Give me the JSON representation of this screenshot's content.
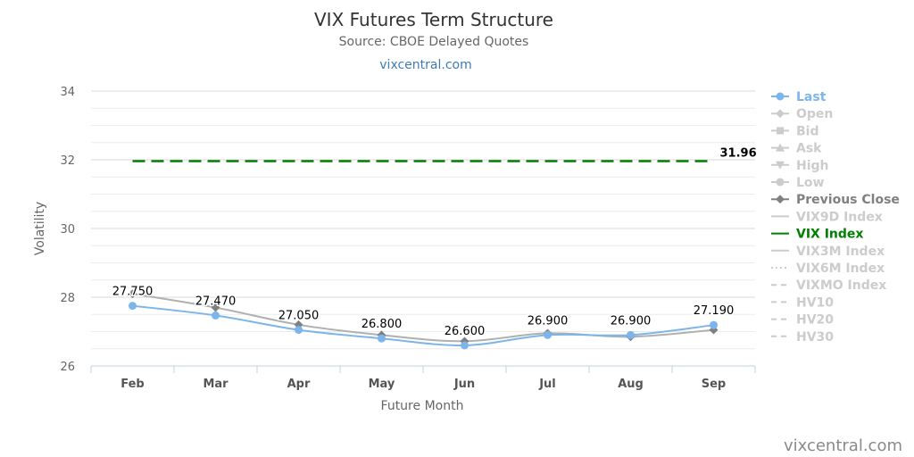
{
  "chart_data": {
    "type": "line",
    "title": "VIX Futures Term Structure",
    "subtitle": "Source: CBOE Delayed Quotes",
    "link": "vixcentral.com",
    "credit": "vixcentral.com",
    "xlabel": "Future Month",
    "ylabel": "Volatility",
    "categories": [
      "Feb",
      "Mar",
      "Apr",
      "May",
      "Jun",
      "Jul",
      "Aug",
      "Sep"
    ],
    "ylim": [
      26,
      34
    ],
    "yticks": [
      "26",
      "28",
      "30",
      "32",
      "34"
    ],
    "series": [
      {
        "name": "Last",
        "values": [
          27.75,
          27.47,
          27.05,
          26.8,
          26.6,
          26.9,
          26.9,
          27.19
        ],
        "labels": [
          "27.750",
          "27.470",
          "27.050",
          "26.800",
          "26.600",
          "26.900",
          "26.900",
          "27.190"
        ],
        "color": "#7cb5ec"
      },
      {
        "name": "Previous Close",
        "values": [
          28.1,
          27.7,
          27.2,
          26.9,
          26.72,
          26.95,
          26.85,
          27.05
        ],
        "color": "#808080"
      },
      {
        "name": "VIX Index",
        "values": [
          31.96,
          31.96,
          31.96,
          31.96,
          31.96,
          31.96,
          31.96,
          31.96
        ],
        "label": "31.96",
        "color": "#008000"
      }
    ],
    "legend": {
      "placement": "right",
      "items": [
        {
          "name": "Last",
          "active": true,
          "symbol": "circle-line",
          "color": "#7cb5ec"
        },
        {
          "name": "Open",
          "active": false,
          "symbol": "diamond-line"
        },
        {
          "name": "Bid",
          "active": false,
          "symbol": "square-line"
        },
        {
          "name": "Ask",
          "active": false,
          "symbol": "triangle-line"
        },
        {
          "name": "High",
          "active": false,
          "symbol": "triangle-down-line"
        },
        {
          "name": "Low",
          "active": false,
          "symbol": "circle-line"
        },
        {
          "name": "Previous Close",
          "active": true,
          "symbol": "diamond-line",
          "color": "#808080"
        },
        {
          "name": "VIX9D Index",
          "active": false,
          "symbol": "line"
        },
        {
          "name": "VIX Index",
          "active": true,
          "symbol": "line",
          "color": "#008000"
        },
        {
          "name": "VIX3M Index",
          "active": false,
          "symbol": "line"
        },
        {
          "name": "VIX6M Index",
          "active": false,
          "symbol": "dotted-line"
        },
        {
          "name": "VIXMO Index",
          "active": false,
          "symbol": "dashed-line"
        },
        {
          "name": "HV10",
          "active": false,
          "symbol": "dashed-line"
        },
        {
          "name": "HV20",
          "active": false,
          "symbol": "dashed-line"
        },
        {
          "name": "HV30",
          "active": false,
          "symbol": "dashed-line"
        }
      ]
    },
    "grid": true
  }
}
